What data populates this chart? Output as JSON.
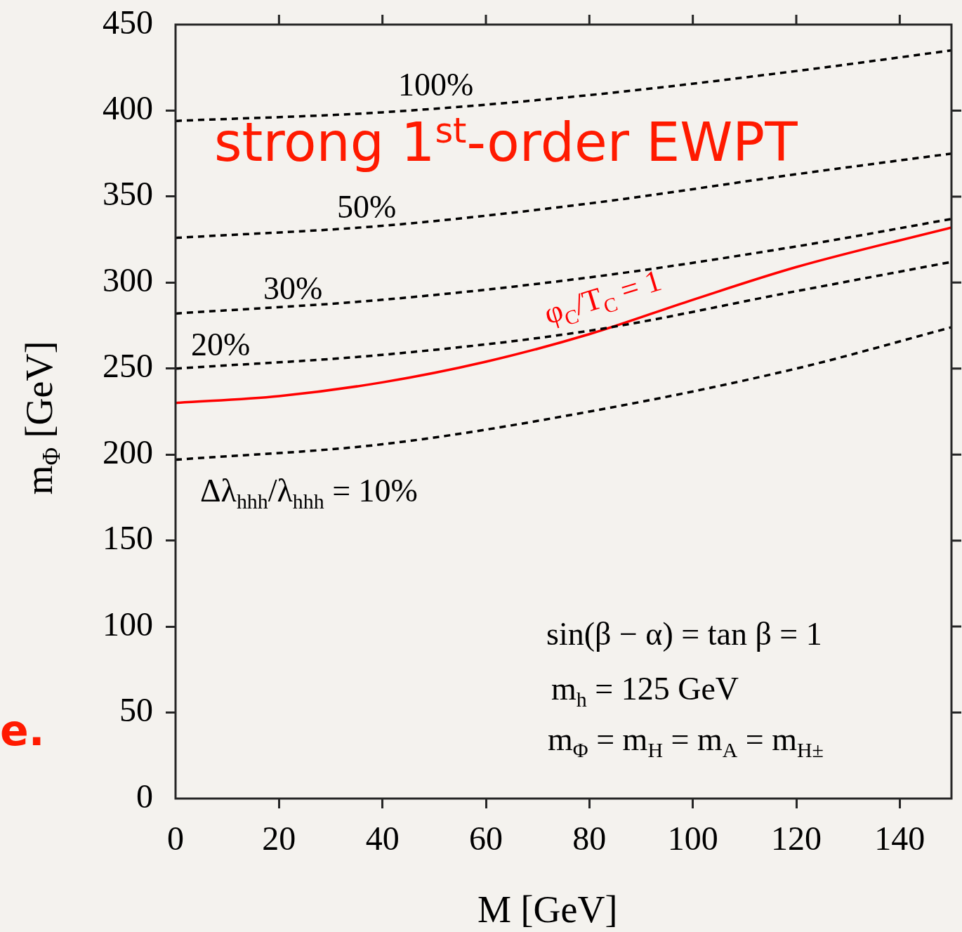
{
  "chart_data": {
    "type": "line",
    "xlabel": "M [GeV]",
    "ylabel": "m$_{Φ}$ [GeV]",
    "xlim": [
      0,
      150
    ],
    "xticks": [
      0,
      20,
      40,
      60,
      80,
      100,
      120,
      140
    ],
    "ylim": [
      0,
      450
    ],
    "yticks": [
      0,
      50,
      100,
      150,
      200,
      250,
      300,
      350,
      400,
      450
    ],
    "grid": false,
    "legend": false,
    "marker": "none",
    "line_style": "dashed",
    "annotations": [
      "strong 1$^{st}$-order EWPT",
      "sin(β − α) = tan β = 1",
      "m$_{h}$ = 125 GeV",
      "m$_{Φ}$ = m$_{H}$ = m$_{A}$ = m$_{H±}$",
      "e.",
      "100%",
      "50%",
      "30%",
      "20%",
      "Δλ$_{hhh}$/λ$_{hhh}$ = 10%",
      "φ$_{C}$/T$_{C}$ = 1"
    ],
    "series": [
      {
        "color": "#000000",
        "x": [
          0,
          40,
          80,
          120,
          150
        ],
        "values": [
          394,
          399,
          409,
          423,
          435
        ]
      },
      {
        "color": "#000000",
        "x": [
          0,
          40,
          80,
          120,
          150
        ],
        "values": [
          326,
          333,
          346,
          363,
          375
        ]
      },
      {
        "color": "#000000",
        "x": [
          0,
          40,
          80,
          120,
          150
        ],
        "values": [
          282,
          290,
          303,
          321,
          337
        ]
      },
      {
        "color": "#000000",
        "x": [
          0,
          40,
          80,
          120,
          150
        ],
        "values": [
          250,
          258,
          272,
          295,
          312
        ]
      },
      {
        "color": "#000000",
        "x": [
          0,
          40,
          80,
          120,
          150
        ],
        "values": [
          197,
          206,
          225,
          250,
          274
        ]
      },
      {
        "color": "#ff0000",
        "line_style": "solid",
        "x": [
          0,
          20,
          40,
          60,
          80,
          100,
          120,
          150
        ],
        "values": [
          230,
          234,
          242,
          254,
          270,
          290,
          309,
          332
        ]
      }
    ]
  }
}
